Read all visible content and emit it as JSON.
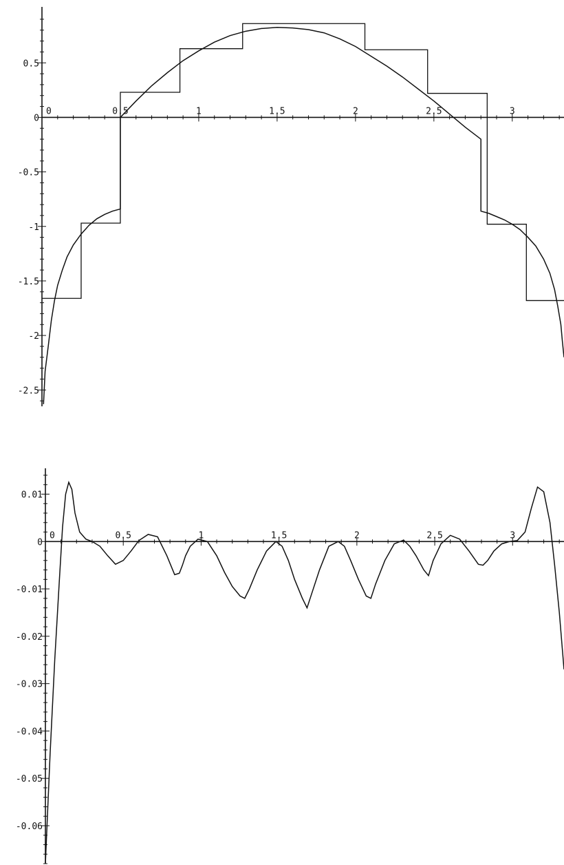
{
  "chart_data": [
    {
      "type": "line",
      "title": "",
      "xlabel": "",
      "ylabel": "",
      "xlim": [
        0,
        3.33
      ],
      "ylim": [
        -2.65,
        0.95
      ],
      "grid": false,
      "legend": "none",
      "x_ticks": [
        {
          "value": 0,
          "label": "0"
        },
        {
          "value": 0.5,
          "label": "0.5"
        },
        {
          "value": 1,
          "label": "1"
        },
        {
          "value": 1.5,
          "label": "1.5"
        },
        {
          "value": 2,
          "label": "2"
        },
        {
          "value": 2.5,
          "label": "2.5"
        },
        {
          "value": 3,
          "label": "3"
        }
      ],
      "y_ticks": [
        {
          "value": 0.5,
          "label": "0.5"
        },
        {
          "value": 0,
          "label": "0"
        },
        {
          "value": -0.5,
          "label": "-0.5"
        },
        {
          "value": -1,
          "label": "-1"
        },
        {
          "value": -1.5,
          "label": "-1.5"
        },
        {
          "value": -2,
          "label": "-2"
        },
        {
          "value": -2.5,
          "label": "-2.5"
        }
      ],
      "series": [
        {
          "kind": "smooth",
          "x": [
            0.01,
            0.02,
            0.04,
            0.06,
            0.08,
            0.1,
            0.13,
            0.16,
            0.2,
            0.25,
            0.3,
            0.35,
            0.4,
            0.45,
            0.5,
            0.5,
            0.6,
            0.7,
            0.8,
            0.9,
            1.0,
            1.1,
            1.2,
            1.3,
            1.4,
            1.5,
            1.6,
            1.7,
            1.8,
            1.9,
            2.0,
            2.1,
            2.2,
            2.3,
            2.4,
            2.5,
            2.6,
            2.7,
            2.8,
            2.8,
            2.85,
            2.9,
            2.95,
            3.0,
            3.05,
            3.1,
            3.15,
            3.2,
            3.24,
            3.27,
            3.29,
            3.31,
            3.32,
            3.33
          ],
          "y": [
            -2.63,
            -2.33,
            -2.1,
            -1.86,
            -1.68,
            -1.54,
            -1.4,
            -1.28,
            -1.17,
            -1.07,
            -0.99,
            -0.93,
            -0.89,
            -0.86,
            -0.84,
            0.0,
            0.15,
            0.29,
            0.41,
            0.52,
            0.61,
            0.69,
            0.75,
            0.79,
            0.815,
            0.825,
            0.82,
            0.805,
            0.775,
            0.72,
            0.65,
            0.56,
            0.47,
            0.37,
            0.26,
            0.15,
            0.03,
            -0.09,
            -0.2,
            -0.86,
            -0.88,
            -0.91,
            -0.94,
            -0.98,
            -1.03,
            -1.1,
            -1.18,
            -1.3,
            -1.43,
            -1.58,
            -1.73,
            -1.9,
            -2.06,
            -2.2
          ]
        },
        {
          "kind": "step",
          "x": [
            0.0,
            0.25,
            0.25,
            0.5,
            0.5,
            0.88,
            0.88,
            1.28,
            1.28,
            2.06,
            2.06,
            2.46,
            2.46,
            2.84,
            2.84,
            3.09,
            3.09,
            3.33
          ],
          "y": [
            -1.66,
            -1.66,
            -0.97,
            -0.97,
            0.23,
            0.23,
            0.63,
            0.63,
            0.86,
            0.86,
            0.62,
            0.62,
            0.22,
            0.22,
            -0.98,
            -0.98,
            -1.68,
            -1.68
          ]
        }
      ]
    },
    {
      "type": "line",
      "title": "",
      "xlabel": "",
      "ylabel": "",
      "xlim": [
        0,
        3.33
      ],
      "ylim": [
        -0.068,
        0.014
      ],
      "grid": false,
      "legend": "none",
      "x_ticks": [
        {
          "value": 0,
          "label": "0"
        },
        {
          "value": 0.5,
          "label": "0.5"
        },
        {
          "value": 1,
          "label": "1"
        },
        {
          "value": 1.5,
          "label": "1.5"
        },
        {
          "value": 2,
          "label": "2"
        },
        {
          "value": 2.5,
          "label": "2.5"
        },
        {
          "value": 3,
          "label": "3"
        }
      ],
      "y_ticks": [
        {
          "value": 0.01,
          "label": "0.01"
        },
        {
          "value": 0,
          "label": "0"
        },
        {
          "value": -0.01,
          "label": "-0.01"
        },
        {
          "value": -0.02,
          "label": "-0.02"
        },
        {
          "value": -0.03,
          "label": "-0.03"
        },
        {
          "value": -0.04,
          "label": "-0.04"
        },
        {
          "value": -0.05,
          "label": "-0.05"
        },
        {
          "value": -0.06,
          "label": "-0.06"
        }
      ],
      "series": [
        {
          "kind": "smooth",
          "x": [
            0.0,
            0.03,
            0.06,
            0.09,
            0.11,
            0.13,
            0.15,
            0.17,
            0.19,
            0.22,
            0.26,
            0.3,
            0.35,
            0.4,
            0.45,
            0.5,
            0.55,
            0.6,
            0.66,
            0.72,
            0.78,
            0.83,
            0.86,
            0.88,
            0.9,
            0.93,
            0.98,
            1.04,
            1.1,
            1.15,
            1.2,
            1.25,
            1.28,
            1.31,
            1.36,
            1.42,
            1.48,
            1.52,
            1.56,
            1.6,
            1.65,
            1.68,
            1.71,
            1.76,
            1.82,
            1.88,
            1.92,
            1.96,
            2.01,
            2.06,
            2.09,
            2.12,
            2.18,
            2.24,
            2.3,
            2.34,
            2.38,
            2.43,
            2.46,
            2.49,
            2.54,
            2.6,
            2.66,
            2.72,
            2.78,
            2.81,
            2.84,
            2.88,
            2.93,
            2.98,
            3.03,
            3.08,
            3.12,
            3.16,
            3.2,
            3.24,
            3.27,
            3.3,
            3.33
          ],
          "y": [
            -0.068,
            -0.045,
            -0.025,
            -0.008,
            0.003,
            0.01,
            0.0125,
            0.011,
            0.006,
            0.002,
            0.0005,
            0.0,
            -0.001,
            -0.003,
            -0.0048,
            -0.004,
            -0.002,
            0.0002,
            0.0015,
            0.001,
            -0.003,
            -0.007,
            -0.0067,
            -0.005,
            -0.003,
            -0.001,
            0.0005,
            0.0,
            -0.003,
            -0.0065,
            -0.0095,
            -0.0115,
            -0.012,
            -0.01,
            -0.006,
            -0.002,
            0.0,
            -0.001,
            -0.004,
            -0.008,
            -0.012,
            -0.014,
            -0.011,
            -0.006,
            -0.001,
            0.0,
            -0.001,
            -0.004,
            -0.008,
            -0.0115,
            -0.012,
            -0.009,
            -0.004,
            -0.0005,
            0.0003,
            -0.001,
            -0.003,
            -0.006,
            -0.0072,
            -0.004,
            -0.0005,
            0.0013,
            0.0005,
            -0.002,
            -0.0048,
            -0.005,
            -0.004,
            -0.002,
            -0.0005,
            0.0,
            0.0002,
            0.002,
            0.007,
            0.0115,
            0.0105,
            0.004,
            -0.005,
            -0.015,
            -0.027
          ]
        }
      ]
    }
  ]
}
